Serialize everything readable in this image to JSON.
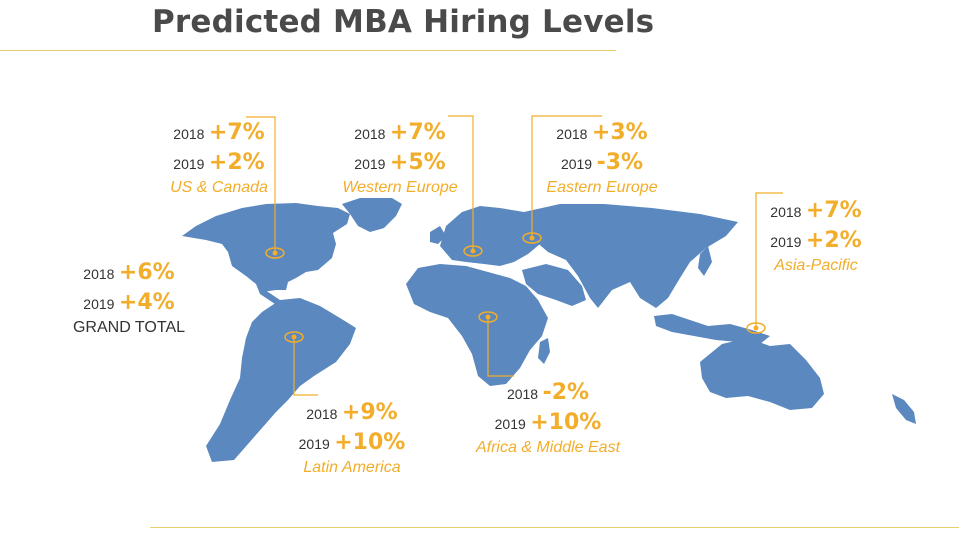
{
  "title": "Predicted MBA Hiring Levels",
  "colors": {
    "map": "#5a88bf",
    "accent": "#f2ad2a",
    "rule": "#e8cf72"
  },
  "regions": [
    {
      "id": "us-canada",
      "name": "US & Canada",
      "y2018_label": "2018",
      "y2018_value": "+7%",
      "y2019_label": "2019",
      "y2019_value": "+2%"
    },
    {
      "id": "western-europe",
      "name": "Western Europe",
      "y2018_label": "2018",
      "y2018_value": "+7%",
      "y2019_label": "2019",
      "y2019_value": "+5%"
    },
    {
      "id": "eastern-europe",
      "name": "Eastern Europe",
      "y2018_label": "2018",
      "y2018_value": "+3%",
      "y2019_label": "2019",
      "y2019_value": "-3%"
    },
    {
      "id": "asia-pacific",
      "name": "Asia-Pacific",
      "y2018_label": "2018",
      "y2018_value": "+7%",
      "y2019_label": "2019",
      "y2019_value": "+2%"
    },
    {
      "id": "grand-total",
      "name": "GRAND TOTAL",
      "y2018_label": "2018",
      "y2018_value": "+6%",
      "y2019_label": "2019",
      "y2019_value": "+4%"
    },
    {
      "id": "latin-america",
      "name": "Latin America",
      "y2018_label": "2018",
      "y2018_value": "+9%",
      "y2019_label": "2019",
      "y2019_value": "+10%"
    },
    {
      "id": "africa-middle-east",
      "name": "Africa & Middle East",
      "y2018_label": "2018",
      "y2018_value": "-2%",
      "y2019_label": "2019",
      "y2019_value": "+10%"
    }
  ]
}
